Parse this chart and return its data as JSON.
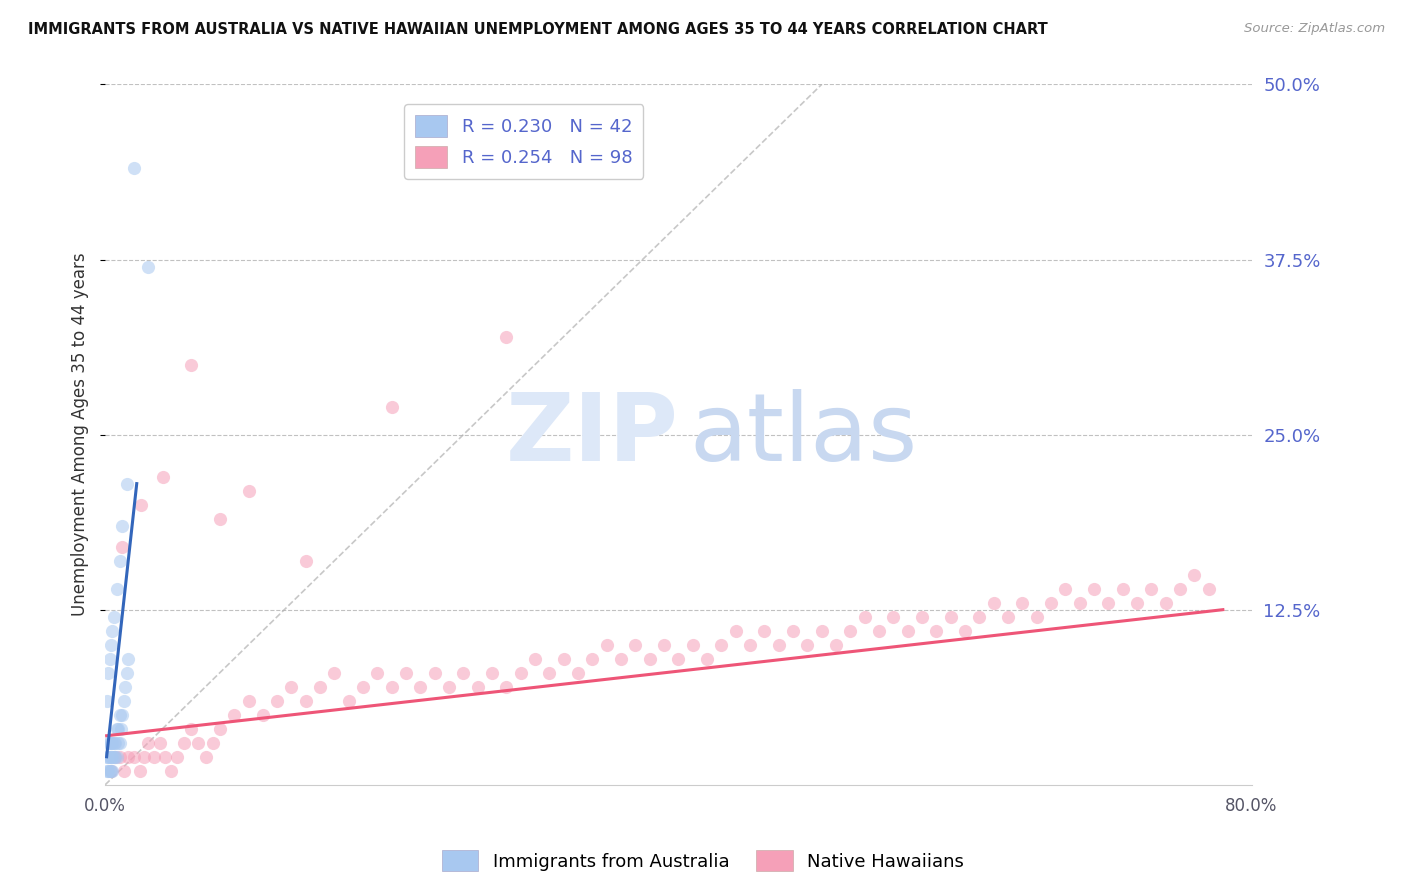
{
  "title": "IMMIGRANTS FROM AUSTRALIA VS NATIVE HAWAIIAN UNEMPLOYMENT AMONG AGES 35 TO 44 YEARS CORRELATION CHART",
  "source": "Source: ZipAtlas.com",
  "ylabel": "Unemployment Among Ages 35 to 44 years",
  "xlim": [
    0.0,
    0.8
  ],
  "ylim": [
    0.0,
    0.5
  ],
  "yticks": [
    0.125,
    0.25,
    0.375,
    0.5
  ],
  "ytick_labels": [
    "12.5%",
    "25.0%",
    "37.5%",
    "50.0%"
  ],
  "blue_scatter_x": [
    0.001,
    0.001,
    0.002,
    0.002,
    0.002,
    0.003,
    0.003,
    0.003,
    0.004,
    0.004,
    0.004,
    0.005,
    0.005,
    0.005,
    0.006,
    0.006,
    0.007,
    0.007,
    0.008,
    0.008,
    0.009,
    0.009,
    0.01,
    0.01,
    0.011,
    0.012,
    0.013,
    0.014,
    0.015,
    0.016,
    0.001,
    0.002,
    0.003,
    0.004,
    0.005,
    0.006,
    0.008,
    0.01,
    0.012,
    0.015,
    0.02,
    0.03
  ],
  "blue_scatter_y": [
    0.01,
    0.02,
    0.01,
    0.02,
    0.03,
    0.01,
    0.02,
    0.03,
    0.01,
    0.02,
    0.03,
    0.01,
    0.02,
    0.03,
    0.02,
    0.03,
    0.02,
    0.03,
    0.02,
    0.04,
    0.03,
    0.04,
    0.03,
    0.05,
    0.04,
    0.05,
    0.06,
    0.07,
    0.08,
    0.09,
    0.06,
    0.08,
    0.09,
    0.1,
    0.11,
    0.12,
    0.14,
    0.16,
    0.185,
    0.215,
    0.44,
    0.37
  ],
  "pink_scatter_x": [
    0.004,
    0.007,
    0.01,
    0.013,
    0.016,
    0.02,
    0.024,
    0.027,
    0.03,
    0.034,
    0.038,
    0.042,
    0.046,
    0.05,
    0.055,
    0.06,
    0.065,
    0.07,
    0.075,
    0.08,
    0.09,
    0.1,
    0.11,
    0.12,
    0.13,
    0.14,
    0.15,
    0.16,
    0.17,
    0.18,
    0.19,
    0.2,
    0.21,
    0.22,
    0.23,
    0.24,
    0.25,
    0.26,
    0.27,
    0.28,
    0.29,
    0.3,
    0.31,
    0.32,
    0.33,
    0.34,
    0.35,
    0.36,
    0.37,
    0.38,
    0.39,
    0.4,
    0.41,
    0.42,
    0.43,
    0.44,
    0.45,
    0.46,
    0.47,
    0.48,
    0.49,
    0.5,
    0.51,
    0.52,
    0.53,
    0.54,
    0.55,
    0.56,
    0.57,
    0.58,
    0.59,
    0.6,
    0.61,
    0.62,
    0.63,
    0.64,
    0.65,
    0.66,
    0.67,
    0.68,
    0.69,
    0.7,
    0.71,
    0.72,
    0.73,
    0.74,
    0.75,
    0.76,
    0.77,
    0.012,
    0.025,
    0.04,
    0.06,
    0.08,
    0.1,
    0.14,
    0.2,
    0.28
  ],
  "pink_scatter_y": [
    0.01,
    0.02,
    0.02,
    0.01,
    0.02,
    0.02,
    0.01,
    0.02,
    0.03,
    0.02,
    0.03,
    0.02,
    0.01,
    0.02,
    0.03,
    0.04,
    0.03,
    0.02,
    0.03,
    0.04,
    0.05,
    0.06,
    0.05,
    0.06,
    0.07,
    0.06,
    0.07,
    0.08,
    0.06,
    0.07,
    0.08,
    0.07,
    0.08,
    0.07,
    0.08,
    0.07,
    0.08,
    0.07,
    0.08,
    0.07,
    0.08,
    0.09,
    0.08,
    0.09,
    0.08,
    0.09,
    0.1,
    0.09,
    0.1,
    0.09,
    0.1,
    0.09,
    0.1,
    0.09,
    0.1,
    0.11,
    0.1,
    0.11,
    0.1,
    0.11,
    0.1,
    0.11,
    0.1,
    0.11,
    0.12,
    0.11,
    0.12,
    0.11,
    0.12,
    0.11,
    0.12,
    0.11,
    0.12,
    0.13,
    0.12,
    0.13,
    0.12,
    0.13,
    0.14,
    0.13,
    0.14,
    0.13,
    0.14,
    0.13,
    0.14,
    0.13,
    0.14,
    0.15,
    0.14,
    0.17,
    0.2,
    0.22,
    0.3,
    0.19,
    0.21,
    0.16,
    0.27,
    0.32
  ],
  "blue_line_x": [
    0.001,
    0.022
  ],
  "blue_line_y": [
    0.02,
    0.215
  ],
  "pink_line_x": [
    0.001,
    0.78
  ],
  "pink_line_y": [
    0.035,
    0.125
  ],
  "diag_line_x": [
    0.0,
    0.5
  ],
  "diag_line_y": [
    0.0,
    0.5
  ],
  "scatter_alpha": 0.55,
  "scatter_size": 90,
  "blue_color": "#a8c8f0",
  "pink_color": "#f5a0b8",
  "blue_line_color": "#3366bb",
  "pink_line_color": "#ee5577",
  "axis_label_color": "#5566cc",
  "title_color": "#111111",
  "grid_color": "#bbbbbb",
  "watermark_zip_color": "#dde8f8",
  "watermark_atlas_color": "#c8d8f0"
}
